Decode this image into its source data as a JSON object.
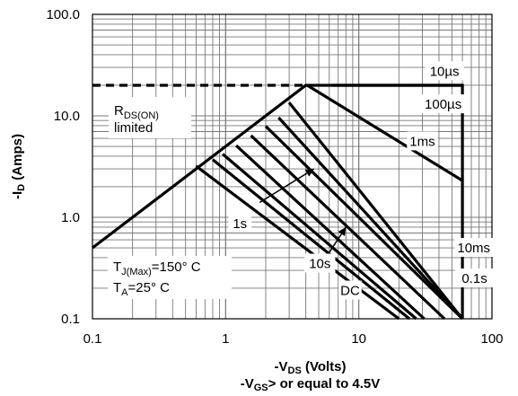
{
  "chart_data": {
    "type": "line",
    "title": "",
    "x_scale": "log",
    "y_scale": "log",
    "xlim": [
      0.1,
      100
    ],
    "ylim": [
      0.1,
      100
    ],
    "grid": true,
    "x_ticks": [
      "0.1",
      "1",
      "10",
      "100"
    ],
    "y_ticks": [
      "0.1",
      "1.0",
      "10.0",
      "100.0"
    ],
    "xlabel": {
      "prefix": "-V",
      "sub": "DS",
      "suffix": " (Volts)"
    },
    "xlabel2": {
      "prefix": "-V",
      "sub": "GS",
      "suffix": "> or equal to 4.5V"
    },
    "ylabel": {
      "prefix": "-I",
      "sub": "D",
      "suffix": " (Amps)"
    },
    "rds_on_label": {
      "main": "R",
      "sub": "DS(ON)",
      "line2": "limited"
    },
    "tj_label": {
      "prefix": "T",
      "sub": "J(Max)",
      "suffix": "=150° C"
    },
    "ta_label": {
      "prefix": "T",
      "sub": "A",
      "suffix": "=25° C"
    },
    "rds_limit": {
      "x": [
        0.1,
        4.0
      ],
      "y": [
        20,
        20
      ]
    },
    "boundary": {
      "x": [
        0.1,
        4.0,
        6.3,
        60,
        60
      ],
      "y": [
        0.5,
        20,
        20,
        20,
        0.1
      ]
    },
    "series": [
      {
        "name": "10µs",
        "x": [
          6.3,
          60
        ],
        "y": [
          20,
          20
        ],
        "label_at": [
          44,
          27.5
        ]
      },
      {
        "name": "100µs",
        "x": [
          4.1,
          60
        ],
        "y": [
          20,
          2.3
        ],
        "label_at": [
          43,
          13.0
        ]
      },
      {
        "name": "1ms",
        "x": [
          3.0,
          60
        ],
        "y": [
          13.5,
          0.1
        ],
        "label_at": [
          30,
          5.6
        ]
      },
      {
        "name": "10ms",
        "x": [
          2.5,
          60
        ],
        "y": [
          9.6,
          0.1
        ],
        "label_at": [
          73,
          0.5
        ]
      },
      {
        "name": "0.1s",
        "x": [
          2.0,
          60
        ],
        "y": [
          7.9,
          0.1
        ],
        "label_at": [
          74,
          0.25
        ]
      },
      {
        "name": "1s",
        "x": [
          1.55,
          44
        ],
        "y": [
          6.4,
          0.1
        ],
        "label_at": [
          1.28,
          0.87
        ]
      },
      {
        "name": "10s",
        "x": [
          1.2,
          31
        ],
        "y": [
          5.1,
          0.1
        ],
        "label_at": [
          5.1,
          0.35
        ]
      },
      {
        "name": "DC",
        "x": [
          0.6,
          20
        ],
        "y": [
          3.2,
          0.1
        ],
        "label_at": [
          8.6,
          0.19
        ]
      },
      {
        "name": "",
        "x": [
          0.95,
          27
        ],
        "y": [
          4.2,
          0.1
        ]
      },
      {
        "name": "",
        "x": [
          0.8,
          24
        ],
        "y": [
          3.7,
          0.1
        ]
      }
    ],
    "arrows": [
      {
        "from": [
          1.8,
          1.4
        ],
        "to": [
          4.6,
          3.0
        ]
      },
      {
        "from": [
          6.0,
          0.45
        ],
        "to": [
          8.0,
          0.8
        ]
      }
    ]
  }
}
